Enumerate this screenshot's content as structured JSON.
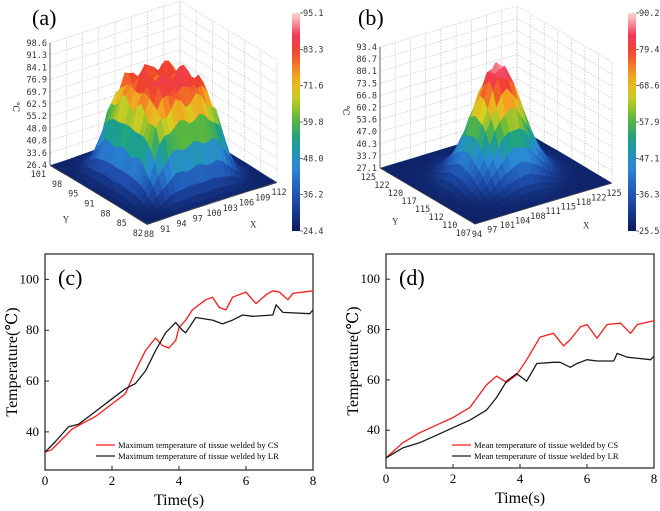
{
  "chart_data": [
    {
      "type": "surface3d",
      "panel_label": "(a)",
      "z_label": "℃",
      "x_label": "X",
      "y_label": "Y",
      "z_ticks": [
        "98.6",
        "91.3",
        "84.1",
        "76.9",
        "69.7",
        "62.5",
        "55.2",
        "48.0",
        "40.8",
        "33.6",
        "26.4"
      ],
      "x_ticks": [
        "88",
        "91",
        "94",
        "97",
        "100",
        "103",
        "106",
        "109",
        "112"
      ],
      "y_ticks": [
        "82",
        "85",
        "88",
        "91",
        "95",
        "98",
        "101"
      ],
      "zlim": [
        26.4,
        98.6
      ],
      "colorbar_ticks": [
        "95.1",
        "83.3",
        "71.6",
        "59.8",
        "48.0",
        "36.2",
        "24.4"
      ],
      "colorbar_range": [
        24.4,
        95.1
      ],
      "shape": "plateau"
    },
    {
      "type": "surface3d",
      "panel_label": "(b)",
      "z_label": "℃",
      "x_label": "X",
      "y_label": "Y",
      "z_ticks": [
        "93.4",
        "86.7",
        "80.1",
        "73.5",
        "66.8",
        "60.2",
        "53.6",
        "47.0",
        "40.3",
        "33.7",
        "27.1"
      ],
      "x_ticks": [
        "94",
        "97",
        "101",
        "104",
        "108",
        "111",
        "115",
        "118",
        "122",
        "125"
      ],
      "y_ticks": [
        "107",
        "110",
        "112",
        "115",
        "117",
        "120",
        "122",
        "125"
      ],
      "zlim": [
        27.1,
        93.4
      ],
      "colorbar_ticks": [
        "90.2",
        "79.4",
        "68.6",
        "57.9",
        "47.1",
        "36.3",
        "25.5"
      ],
      "colorbar_range": [
        25.5,
        90.2
      ],
      "shape": "gaussian"
    },
    {
      "type": "line",
      "panel_label": "(c)",
      "xlabel": "Time(s)",
      "ylabel": "Temperature(℃)",
      "xlim": [
        0,
        8
      ],
      "ylim": [
        25,
        110
      ],
      "x_ticks": [
        0,
        2,
        4,
        6,
        8
      ],
      "y_ticks": [
        40,
        60,
        80,
        100
      ],
      "legend_position": "bottom-right",
      "series": [
        {
          "name": "Maximum temperature of tissue welded by CS",
          "color": "#ff1a1a",
          "points": [
            [
              0,
              32
            ],
            [
              0.2,
              33
            ],
            [
              0.5,
              37
            ],
            [
              0.8,
              41
            ],
            [
              1,
              42.5
            ],
            [
              1.5,
              46
            ],
            [
              2,
              51
            ],
            [
              2.4,
              55
            ],
            [
              2.7,
              64
            ],
            [
              3,
              72
            ],
            [
              3.3,
              77
            ],
            [
              3.5,
              74
            ],
            [
              3.7,
              73
            ],
            [
              3.9,
              76
            ],
            [
              4,
              81
            ],
            [
              4.2,
              84
            ],
            [
              4.4,
              88
            ],
            [
              4.8,
              92
            ],
            [
              5,
              93
            ],
            [
              5.2,
              89
            ],
            [
              5.4,
              88
            ],
            [
              5.6,
              93
            ],
            [
              6,
              95
            ],
            [
              6.3,
              90.5
            ],
            [
              6.6,
              94
            ],
            [
              6.8,
              95.5
            ],
            [
              7,
              95
            ],
            [
              7.25,
              92
            ],
            [
              7.4,
              94.5
            ],
            [
              8,
              95.5
            ]
          ]
        },
        {
          "name": "Maximum temperature of tissue welded by LR",
          "color": "#1a1a1a",
          "points": [
            [
              0,
              32
            ],
            [
              0.3,
              36
            ],
            [
              0.7,
              42
            ],
            [
              1,
              43
            ],
            [
              1.5,
              48
            ],
            [
              2,
              53
            ],
            [
              2.4,
              57
            ],
            [
              2.7,
              59
            ],
            [
              3,
              64
            ],
            [
              3.3,
              72
            ],
            [
              3.6,
              79
            ],
            [
              3.9,
              83
            ],
            [
              4.1,
              80
            ],
            [
              4.2,
              79
            ],
            [
              4.5,
              85
            ],
            [
              5,
              84
            ],
            [
              5.3,
              82.5
            ],
            [
              5.6,
              84
            ],
            [
              5.9,
              86
            ],
            [
              6.2,
              85.5
            ],
            [
              6.8,
              86
            ],
            [
              6.9,
              90
            ],
            [
              7.1,
              87
            ],
            [
              7.9,
              86.5
            ],
            [
              8,
              88
            ]
          ]
        }
      ]
    },
    {
      "type": "line",
      "panel_label": "(d)",
      "xlabel": "Time(s)",
      "ylabel": "Temperature(℃)",
      "xlim": [
        0,
        8
      ],
      "ylim": [
        25,
        110
      ],
      "x_ticks": [
        0,
        2,
        4,
        6,
        8
      ],
      "y_ticks": [
        40,
        60,
        80,
        100
      ],
      "legend_position": "bottom-right",
      "series": [
        {
          "name": "Mean temperature of tissue welded by CS",
          "color": "#ff1a1a",
          "points": [
            [
              0,
              29
            ],
            [
              0.5,
              35
            ],
            [
              1,
              39
            ],
            [
              1.5,
              42
            ],
            [
              2,
              45
            ],
            [
              2.5,
              49
            ],
            [
              3,
              58
            ],
            [
              3.3,
              61.5
            ],
            [
              3.6,
              59
            ],
            [
              3.9,
              62
            ],
            [
              4.2,
              68
            ],
            [
              4.6,
              77
            ],
            [
              5,
              78.5
            ],
            [
              5.3,
              73.5
            ],
            [
              5.5,
              76
            ],
            [
              5.8,
              81
            ],
            [
              6,
              82
            ],
            [
              6.3,
              76.5
            ],
            [
              6.6,
              82
            ],
            [
              7,
              82.5
            ],
            [
              7.3,
              78.5
            ],
            [
              7.5,
              82
            ],
            [
              8,
              83.5
            ]
          ]
        },
        {
          "name": "Mean temperature of tissue welded by LR",
          "color": "#1a1a1a",
          "points": [
            [
              0,
              29
            ],
            [
              0.5,
              33
            ],
            [
              1,
              35
            ],
            [
              1.5,
              38
            ],
            [
              2,
              41
            ],
            [
              2.5,
              44
            ],
            [
              3,
              48
            ],
            [
              3.3,
              53
            ],
            [
              3.6,
              59.5
            ],
            [
              3.9,
              62.5
            ],
            [
              4.2,
              59.5
            ],
            [
              4.5,
              66.5
            ],
            [
              5,
              67
            ],
            [
              5.2,
              67
            ],
            [
              5.5,
              65
            ],
            [
              5.7,
              66.5
            ],
            [
              6,
              68
            ],
            [
              6.3,
              67.5
            ],
            [
              6.8,
              67.5
            ],
            [
              6.9,
              70.5
            ],
            [
              7.2,
              69
            ],
            [
              7.9,
              68
            ],
            [
              8,
              69.5
            ]
          ]
        }
      ]
    }
  ]
}
